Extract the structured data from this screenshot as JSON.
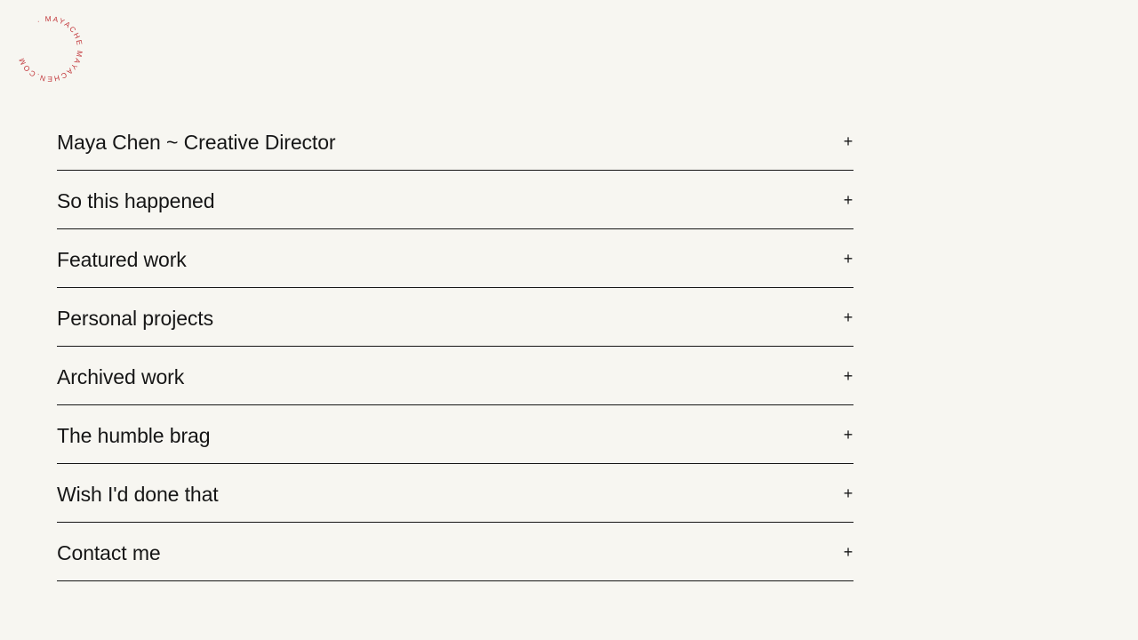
{
  "logo": {
    "circular_text": "· MAYACHE MAYACHEN.COM ",
    "color": "#c2383c"
  },
  "accordion": {
    "items": [
      {
        "label": "Maya Chen ~ Creative Director",
        "toggle": "+"
      },
      {
        "label": "So this happened",
        "toggle": "+"
      },
      {
        "label": "Featured work",
        "toggle": "+"
      },
      {
        "label": "Personal projects",
        "toggle": "+"
      },
      {
        "label": "Archived work",
        "toggle": "+"
      },
      {
        "label": "The humble brag",
        "toggle": "+"
      },
      {
        "label": "Wish I'd done that",
        "toggle": "+"
      },
      {
        "label": "Contact me",
        "toggle": "+"
      }
    ]
  }
}
